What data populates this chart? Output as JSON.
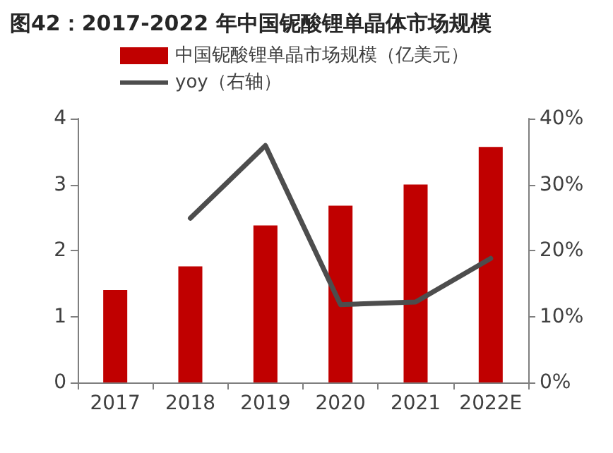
{
  "chart_data": {
    "type": "bar",
    "title": "图42：2017-2022 年中国铌酸锂单晶体市场规模",
    "categories": [
      "2017",
      "2018",
      "2019",
      "2020",
      "2021",
      "2022E"
    ],
    "series": [
      {
        "name": "中国铌酸锂单晶市场规模（亿美元）",
        "color": "#c00000",
        "values": [
          1.4,
          1.76,
          2.38,
          2.68,
          3.0,
          3.57
        ]
      },
      {
        "name": "yoy（右轴）",
        "type": "line",
        "axis": "y2",
        "color": "#4d4d4d",
        "values": [
          null,
          24.9,
          35.9,
          11.8,
          12.2,
          18.8
        ]
      }
    ],
    "ylim": [
      0,
      4
    ],
    "yticks": [
      0,
      1,
      2,
      3,
      4
    ],
    "y2lim": [
      0,
      40
    ],
    "y2ticks": [
      {
        "value": 0,
        "label": "0%"
      },
      {
        "value": 10,
        "label": "10%"
      },
      {
        "value": 20,
        "label": "20%"
      },
      {
        "value": 30,
        "label": "30%"
      },
      {
        "value": 40,
        "label": "40%"
      }
    ],
    "grid": false,
    "legend": "top",
    "marker": "none",
    "line_style": "solid"
  }
}
